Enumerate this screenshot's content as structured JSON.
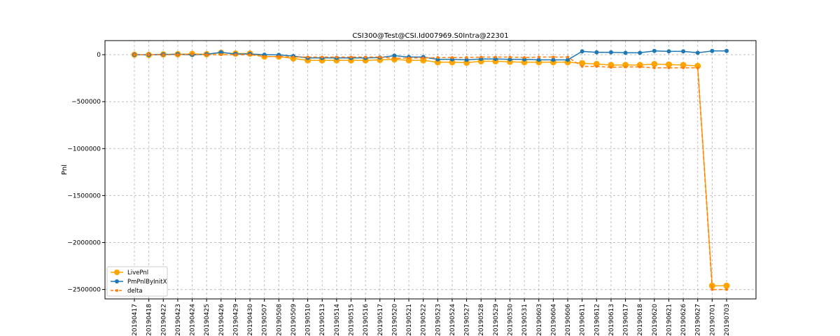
{
  "chart_data": {
    "type": "line",
    "title": "CSI300@Test@CSI.Id007969.S0Intra@22301",
    "xlabel": "",
    "ylabel": "Pnl",
    "ylim": [
      -2600000,
      150000
    ],
    "yticks": [
      0,
      -500000,
      -1000000,
      -1500000,
      -2000000,
      -2500000
    ],
    "ytick_labels": [
      "0",
      "−500000",
      "−1000000",
      "−1500000",
      "−2000000",
      "−2500000"
    ],
    "grid": true,
    "grid_style": "dashed",
    "legend_position": "lower-left",
    "categories": [
      "20190417",
      "20190418",
      "20190422",
      "20190423",
      "20190424",
      "20190425",
      "20190426",
      "20190429",
      "20190430",
      "20190507",
      "20190508",
      "20190509",
      "20190510",
      "20190513",
      "20190514",
      "20190515",
      "20190516",
      "20190517",
      "20190520",
      "20190521",
      "20190522",
      "20190523",
      "20190524",
      "20190527",
      "20190528",
      "20190529",
      "20190530",
      "20190531",
      "20190603",
      "20190604",
      "20190606",
      "20190611",
      "20190612",
      "20190613",
      "20190617",
      "20190618",
      "20190620",
      "20190621",
      "20190626",
      "20190627",
      "20190701",
      "20190703"
    ],
    "series": [
      {
        "name": "LivePnl",
        "color": "#ffa500",
        "marker": "circle-large",
        "linestyle": "solid",
        "values": [
          0,
          -2000,
          3000,
          5000,
          8000,
          5000,
          20000,
          12000,
          12000,
          -20000,
          -20000,
          -40000,
          -60000,
          -60000,
          -60000,
          -60000,
          -60000,
          -55000,
          -50000,
          -60000,
          -60000,
          -80000,
          -80000,
          -85000,
          -70000,
          -70000,
          -75000,
          -80000,
          -80000,
          -80000,
          -80000,
          -90000,
          -100000,
          -110000,
          -110000,
          -110000,
          -100000,
          -105000,
          -110000,
          -120000,
          -2460000,
          -2460000
        ]
      },
      {
        "name": "PmPnlByInitX",
        "color": "#1f77b4",
        "marker": "circle",
        "linestyle": "solid",
        "values": [
          0,
          -2000,
          3000,
          5000,
          -2000,
          5000,
          25000,
          8000,
          8000,
          0,
          -2000,
          -15000,
          -35000,
          -35000,
          -35000,
          -35000,
          -35000,
          -30000,
          -10000,
          -25000,
          -25000,
          -50000,
          -50000,
          -55000,
          -45000,
          -45000,
          -50000,
          -50000,
          -55000,
          -55000,
          -55000,
          35000,
          25000,
          25000,
          20000,
          20000,
          40000,
          35000,
          35000,
          20000,
          40000,
          40000
        ]
      },
      {
        "name": "delta",
        "color": "#ff7f0e",
        "marker": "point",
        "linestyle": "dashed",
        "values": [
          0,
          0,
          0,
          0,
          5000,
          0,
          0,
          0,
          0,
          -20000,
          -20000,
          -25000,
          -25000,
          -25000,
          -25000,
          -25000,
          -25000,
          -25000,
          -40000,
          -35000,
          -35000,
          -30000,
          -30000,
          -30000,
          -25000,
          -25000,
          -25000,
          -30000,
          -25000,
          -25000,
          -25000,
          -125000,
          -125000,
          -135000,
          -130000,
          -130000,
          -140000,
          -140000,
          -140000,
          -140000,
          -2500000,
          -2500000
        ]
      }
    ]
  }
}
